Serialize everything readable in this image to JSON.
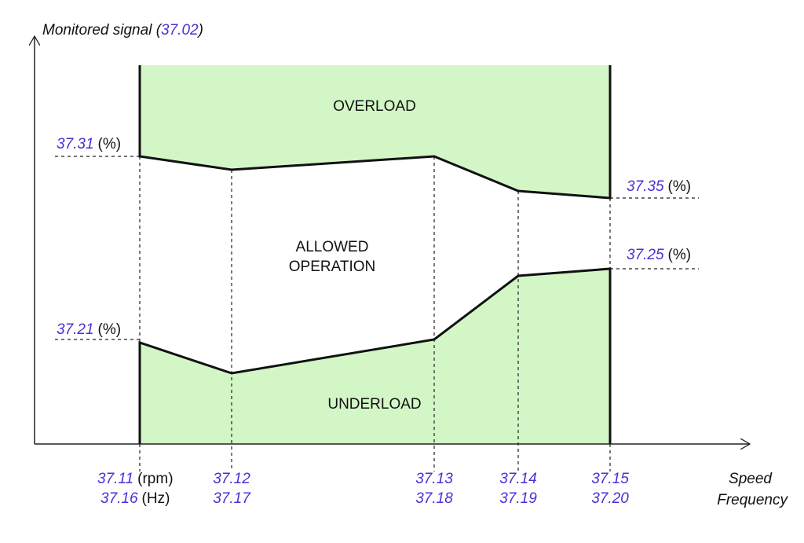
{
  "y_axis": {
    "label": [
      "Monitored signal (",
      "37.02",
      ")"
    ]
  },
  "x_axis": {
    "labels": [
      "Speed",
      "Frequency"
    ]
  },
  "regions": {
    "overload": "OVERLOAD",
    "allowed": [
      "ALLOWED",
      "OPERATION"
    ],
    "underload": "UNDERLOAD"
  },
  "levels": [
    {
      "param": "37.31",
      "unit": "(%)"
    },
    {
      "param": "37.35",
      "unit": "(%)"
    },
    {
      "param": "37.25",
      "unit": "(%)"
    },
    {
      "param": "37.21",
      "unit": "(%)"
    }
  ],
  "x_points": [
    {
      "speed": "37.11",
      "speed_unit": "(rpm)",
      "freq": "37.16",
      "freq_unit": "(Hz)"
    },
    {
      "speed": "37.12",
      "freq": "37.17"
    },
    {
      "speed": "37.13",
      "freq": "37.18"
    },
    {
      "speed": "37.14",
      "freq": "37.19"
    },
    {
      "speed": "37.15",
      "freq": "37.20"
    }
  ]
}
